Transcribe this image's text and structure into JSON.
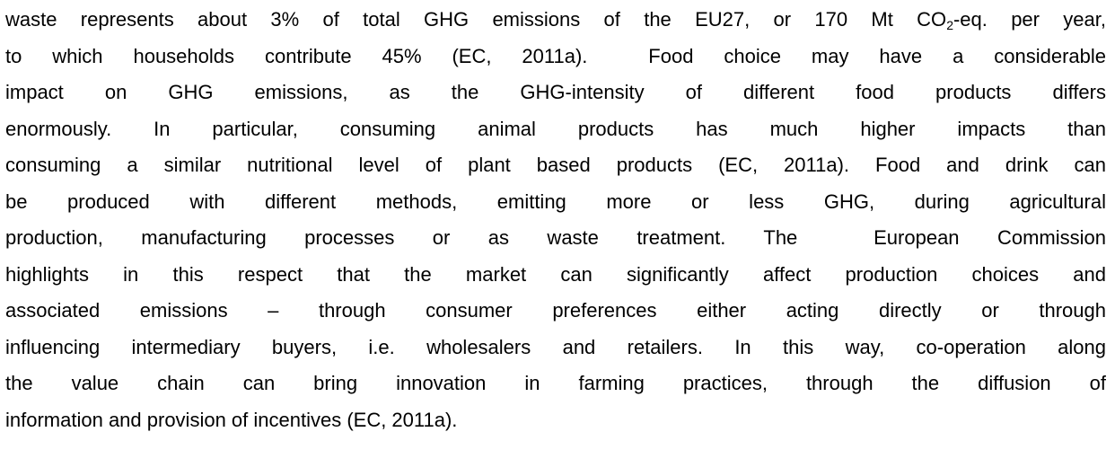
{
  "paragraph": {
    "first_line": {
      "before": "waste represents about 3% of total GHG emissions of the EU27, or 170 Mt CO",
      "subscript": "2",
      "after": "-eq. per year,"
    },
    "lines": [
      "to which households contribute 45% (EC, 2011a).  Food choice may have a considerable",
      "impact on GHG emissions, as the GHG-intensity of different food products differs",
      "enormously. In particular, consuming animal products has much higher impacts than",
      "consuming a similar nutritional level of plant based products (EC, 2011a). Food and drink can",
      "be produced with different methods, emitting more or less GHG, during agricultural",
      "production, manufacturing processes or as waste treatment. The  European Commission",
      "highlights in this respect that the market can significantly affect production choices and",
      "associated emissions – through consumer preferences either acting directly or through",
      "influencing intermediary buyers, i.e. wholesalers and retailers. In this way, co-operation along",
      "the value chain can bring innovation in farming practices, through the diffusion of",
      "information and provision of incentives (EC, 2011a)."
    ]
  }
}
